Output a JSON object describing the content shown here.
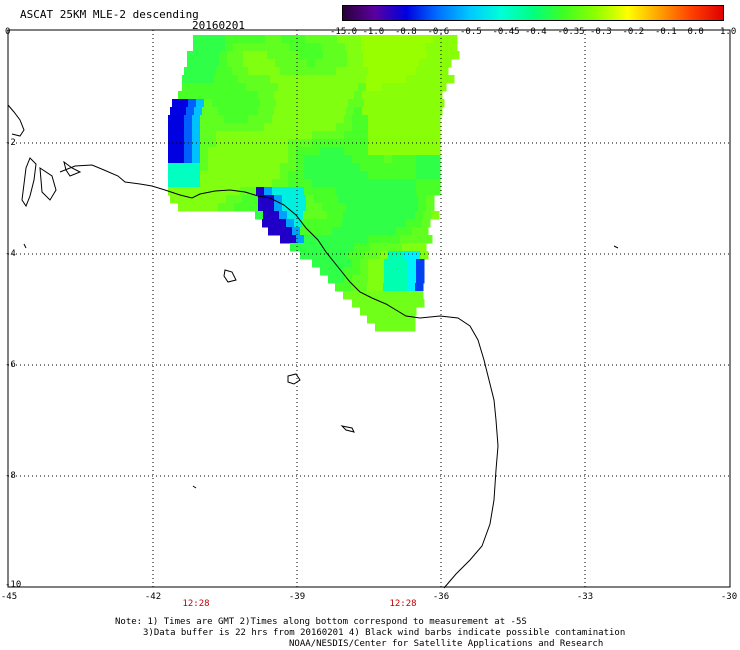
{
  "header": {
    "title": "ASCAT 25KM MLE-2 descending",
    "date": "20160201"
  },
  "colorbar": {
    "labels": [
      "-15.0",
      "-1.0",
      "-0.8",
      "-0.6",
      "-0.5",
      "-0.45",
      "-0.4",
      "-0.35",
      "-0.3",
      "-0.2",
      "-0.1",
      "0.0",
      "1.0"
    ],
    "colors": [
      "#2a0038",
      "#5a00a0",
      "#0000e0",
      "#0070ff",
      "#00c8ff",
      "#00ffd8",
      "#00ff80",
      "#40ff20",
      "#90ff00",
      "#ffff00",
      "#ffa000",
      "#ff4000",
      "#e00000"
    ]
  },
  "axes": {
    "x_ticks": [
      "-45",
      "-42",
      "-39",
      "-36",
      "-33",
      "-30"
    ],
    "y_ticks": [
      "0",
      "-2",
      "-4",
      "-6",
      "-8",
      "-10"
    ],
    "xlim": [
      -45,
      -30
    ],
    "ylim": [
      -10,
      0
    ]
  },
  "times": [
    "12:28",
    "12:28"
  ],
  "notes": {
    "line1": "Note: 1) Times are GMT 2)Times along bottom correspond to measurement at -5S",
    "line2": "3)Data buffer is 22 hrs from 20160201 4) Black wind barbs indicate possible contamination",
    "line3": "NOAA/NESDIS/Center for Satellite Applications and Research"
  },
  "colors": {
    "grid": "#000000",
    "coast": "#000000",
    "dominant_field": "#90ff00",
    "low_values": "#0000e0"
  }
}
